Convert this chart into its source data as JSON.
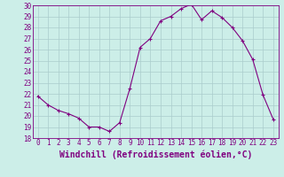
{
  "x": [
    0,
    1,
    2,
    3,
    4,
    5,
    6,
    7,
    8,
    9,
    10,
    11,
    12,
    13,
    14,
    15,
    16,
    17,
    18,
    19,
    20,
    21,
    22,
    23
  ],
  "y": [
    21.8,
    21.0,
    20.5,
    20.2,
    19.8,
    19.0,
    19.0,
    18.6,
    19.4,
    22.5,
    26.2,
    27.0,
    28.6,
    29.0,
    29.7,
    30.1,
    28.7,
    29.5,
    28.9,
    28.0,
    26.8,
    25.1,
    21.9,
    19.7
  ],
  "line_color": "#800080",
  "marker": "+",
  "marker_size": 3,
  "bg_color": "#cceee8",
  "grid_color": "#aacccc",
  "xlabel": "Windchill (Refroidissement éolien,°C)",
  "xlabel_fontsize": 7,
  "ylim": [
    18,
    30
  ],
  "xlim": [
    -0.5,
    23.5
  ],
  "yticks": [
    18,
    19,
    20,
    21,
    22,
    23,
    24,
    25,
    26,
    27,
    28,
    29,
    30
  ],
  "xticks": [
    0,
    1,
    2,
    3,
    4,
    5,
    6,
    7,
    8,
    9,
    10,
    11,
    12,
    13,
    14,
    15,
    16,
    17,
    18,
    19,
    20,
    21,
    22,
    23
  ],
  "tick_fontsize": 5.5,
  "axis_color": "#800080",
  "spine_color": "#800080",
  "linewidth": 0.8,
  "markeredgewidth": 0.8
}
